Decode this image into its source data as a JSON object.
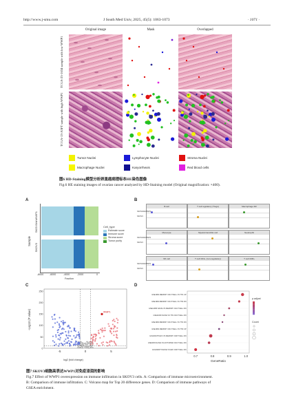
{
  "header": {
    "url": "http://www.j-smu.com",
    "journal": "J South Med Univ, 2025, 45(5): 1063-1073",
    "page": "· 1071 ·"
  },
  "fig6": {
    "col_titles": [
      "Original image",
      "Mask",
      "Overlapped"
    ],
    "row_labels": [
      "TCGA-25-1634 sample with low WWP1",
      "TCGA-13-A5FT sample with high WWP1"
    ],
    "legend": [
      {
        "label": "Tumor Nuclei",
        "color": "#f2f200"
      },
      {
        "label": "Lymphocyte Nuclei",
        "color": "#1a1ad8"
      },
      {
        "label": "Stroma Nuclei",
        "color": "#e01010"
      },
      {
        "label": "Macrophage Nuclei",
        "color": "#f7f700"
      },
      {
        "label": "Karyorrhexis",
        "color": "#101090"
      },
      {
        "label": "Red blood cells",
        "color": "#e020e0"
      }
    ],
    "caption_cn": "图6  HD-Staining模型分析卵巢癌病理标本HE染色图像",
    "caption_en": "Fig.6  HE staining images of ovarian cancer analyzed by HD-Staining model (Original magnification: ×400)."
  },
  "fig7": {
    "panel_labels": [
      "A",
      "B",
      "C",
      "D"
    ],
    "panel_a": {
      "ylabel": "Sample",
      "xlabel": "Fraction",
      "samples": [
        "SKOV3/shWWP1",
        "SKOV3"
      ],
      "ticks": [
        "-8000",
        "-6000",
        "-4000",
        "-2000",
        "0"
      ],
      "legend_title": "Cell_type",
      "legend_items": [
        "Estimate score",
        "Immune score",
        "Stroma score",
        "Tumor purity"
      ],
      "colors": [
        "#a6d6e6",
        "#2a74b8",
        "#b5dd96",
        "#3a9a2e"
      ]
    },
    "panel_b": {
      "facets": [
        "B cell",
        "T cell regulatory (Tregs)",
        "Macrophage M2",
        "Monocyte",
        "Myeloid dendritic cell",
        "Neutrophil",
        "NK cell",
        "T cell CD4+ (non-regulatory)",
        "T cell CD8+"
      ],
      "rows": [
        "SKOV3/shWWP1",
        "SKOV3"
      ]
    },
    "panel_c": {
      "xlabel": "log2 (fold change)",
      "ylabel": "-Log10 (P value)",
      "x_ticks": [
        "-5",
        "0",
        "5"
      ],
      "y_ticks": [
        "0",
        "50",
        "100",
        "150",
        "200",
        "250"
      ],
      "labels": [
        "WWP1"
      ]
    },
    "panel_d": {
      "xlabel": "GeneRatio",
      "x_ticks": [
        "0.7",
        "0.8",
        "0.9",
        "1.0"
      ],
      "legend_p_title": "p.adjust",
      "legend_count_title": "Count",
      "pathways": [
        "GSE1982 MEMORY CD4 TCELL VS TH1 UP",
        "GSE1982 MEMORY CD4 TCELL VS TH2 DN",
        "GSE11058 NAIVE VS MEMORY CD4 TCELL DN",
        "GSE11060 NAIVE VS TH1 CD4 TCELL DN",
        "GSE1982 MEMORY CD4 TCELL VS TH1 DN",
        "GSE1982 MEMORY CD4 TCELL VS TH2 UP",
        "GOLDRATH EFF VS MEMORY CD8 TCELL DN",
        "GSE3039 NAIVE VS ACTIVATED CD4 TCELL DN",
        "GOLDRATH NAIVE VS EFF CD8 TCELL DN"
      ]
    },
    "caption_cn": "图7  SKOV3细胞高表达WWP1对免疫浸润的影响",
    "caption_en_lines": [
      "Fig.7  Effect of WWP1 overexpression on immune infiltration in SKOV3 cells. A: Comparison of immune microenvironment.",
      "B: Comparison of immune infiltration. C: Volcano map for Top 20 difference genes. D: Comparison of immune pathways of",
      "GSEA enrichment."
    ]
  }
}
